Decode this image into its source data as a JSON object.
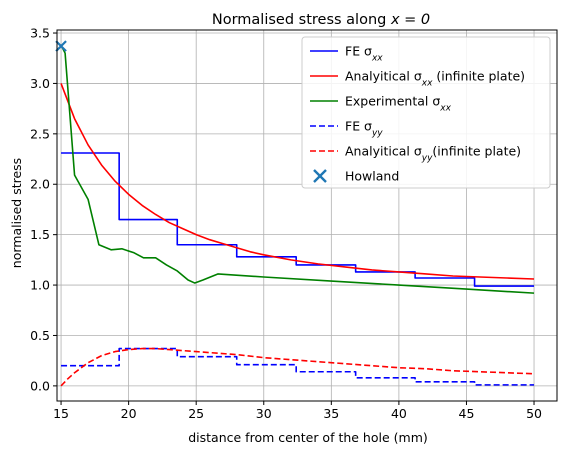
{
  "chart_data": {
    "type": "line",
    "title": "Normalised stress along x = 0",
    "title_parts": {
      "text": "Normalised stress along ",
      "math": "x = 0"
    },
    "xlabel": "distance from center of the hole (mm)",
    "ylabel": "normalised stress",
    "xlim": [
      14.7,
      51.7
    ],
    "ylim": [
      -0.15,
      3.53
    ],
    "xticks": [
      15,
      20,
      25,
      30,
      35,
      40,
      45,
      50
    ],
    "yticks": [
      0.0,
      0.5,
      1.0,
      1.5,
      2.0,
      2.5,
      3.0,
      3.5
    ],
    "xtick_labels": [
      "15",
      "20",
      "25",
      "30",
      "35",
      "40",
      "45",
      "50"
    ],
    "ytick_labels": [
      "0.0",
      "0.5",
      "1.0",
      "1.5",
      "2.0",
      "2.5",
      "3.0",
      "3.5"
    ],
    "grid": true,
    "legend_position": "top-right",
    "series": [
      {
        "name": "FE σxx",
        "name_main": "FE σ",
        "name_sub": "xx",
        "color": "#0000ff",
        "dash": "solid",
        "points": [
          [
            15.0,
            2.31
          ],
          [
            19.3,
            2.31
          ],
          [
            19.3,
            1.65
          ],
          [
            23.6,
            1.65
          ],
          [
            23.6,
            1.4
          ],
          [
            28.0,
            1.4
          ],
          [
            28.0,
            1.28
          ],
          [
            32.4,
            1.28
          ],
          [
            32.4,
            1.2
          ],
          [
            36.8,
            1.2
          ],
          [
            36.8,
            1.13
          ],
          [
            41.2,
            1.13
          ],
          [
            41.2,
            1.07
          ],
          [
            45.6,
            1.07
          ],
          [
            45.6,
            0.99
          ],
          [
            50.0,
            0.99
          ]
        ]
      },
      {
        "name": "Analyitical σxx (infinite plate)",
        "name_main": "Analyitical σ",
        "name_sub": "xx",
        "name_suffix": " (infinite plate)",
        "color": "#ff0000",
        "dash": "solid",
        "points": [
          [
            15.0,
            3.0
          ],
          [
            16.0,
            2.65
          ],
          [
            17.0,
            2.39
          ],
          [
            18.0,
            2.19
          ],
          [
            19.0,
            2.03
          ],
          [
            20.0,
            1.9
          ],
          [
            21.0,
            1.79
          ],
          [
            22.0,
            1.7
          ],
          [
            23.0,
            1.62
          ],
          [
            24.0,
            1.56
          ],
          [
            25.0,
            1.5
          ],
          [
            26.0,
            1.45
          ],
          [
            27.0,
            1.41
          ],
          [
            28.0,
            1.37
          ],
          [
            29.0,
            1.33
          ],
          [
            30.0,
            1.3
          ],
          [
            32.0,
            1.25
          ],
          [
            34.0,
            1.21
          ],
          [
            36.0,
            1.18
          ],
          [
            38.0,
            1.15
          ],
          [
            40.0,
            1.13
          ],
          [
            42.0,
            1.11
          ],
          [
            44.0,
            1.09
          ],
          [
            46.0,
            1.08
          ],
          [
            48.0,
            1.07
          ],
          [
            50.0,
            1.06
          ]
        ]
      },
      {
        "name": "Experimental σxx",
        "name_main": "Experimental σ",
        "name_sub": "xx",
        "color": "#008000",
        "dash": "solid",
        "points": [
          [
            15.0,
            3.38
          ],
          [
            15.3,
            3.3
          ],
          [
            16.0,
            2.09
          ],
          [
            17.0,
            1.85
          ],
          [
            17.8,
            1.4
          ],
          [
            18.7,
            1.35
          ],
          [
            19.5,
            1.36
          ],
          [
            20.4,
            1.32
          ],
          [
            21.1,
            1.27
          ],
          [
            22.0,
            1.27
          ],
          [
            22.8,
            1.2
          ],
          [
            23.6,
            1.14
          ],
          [
            24.4,
            1.05
          ],
          [
            24.9,
            1.02
          ],
          [
            25.5,
            1.05
          ],
          [
            26.6,
            1.11
          ],
          [
            30.0,
            1.08
          ],
          [
            35.0,
            1.04
          ],
          [
            40.0,
            1.0
          ],
          [
            45.0,
            0.96
          ],
          [
            50.0,
            0.92
          ]
        ]
      },
      {
        "name": "FE σyy",
        "name_main": "FE σ",
        "name_sub": "yy",
        "color": "#0000ff",
        "dash": "dashed",
        "points": [
          [
            15.0,
            0.2
          ],
          [
            19.3,
            0.2
          ],
          [
            19.3,
            0.37
          ],
          [
            23.6,
            0.37
          ],
          [
            23.6,
            0.29
          ],
          [
            28.0,
            0.29
          ],
          [
            28.0,
            0.21
          ],
          [
            32.4,
            0.21
          ],
          [
            32.4,
            0.14
          ],
          [
            36.8,
            0.14
          ],
          [
            36.8,
            0.08
          ],
          [
            41.2,
            0.08
          ],
          [
            41.2,
            0.04
          ],
          [
            45.6,
            0.04
          ],
          [
            45.6,
            0.01
          ],
          [
            50.0,
            0.01
          ]
        ]
      },
      {
        "name": "Analyitical σyy(infinite plate)",
        "name_main": "Analyitical σ",
        "name_sub": "yy",
        "name_suffix": "(infinite plate)",
        "color": "#ff0000",
        "dash": "dashed",
        "points": [
          [
            15.0,
            0.0
          ],
          [
            15.5,
            0.07
          ],
          [
            16.0,
            0.13
          ],
          [
            17.0,
            0.23
          ],
          [
            18.0,
            0.3
          ],
          [
            19.0,
            0.34
          ],
          [
            20.0,
            0.36
          ],
          [
            21.0,
            0.37
          ],
          [
            22.0,
            0.37
          ],
          [
            23.0,
            0.36
          ],
          [
            24.0,
            0.35
          ],
          [
            25.0,
            0.34
          ],
          [
            26.0,
            0.33
          ],
          [
            28.0,
            0.31
          ],
          [
            30.0,
            0.28
          ],
          [
            32.0,
            0.26
          ],
          [
            34.0,
            0.24
          ],
          [
            36.0,
            0.22
          ],
          [
            38.0,
            0.2
          ],
          [
            40.0,
            0.18
          ],
          [
            42.0,
            0.17
          ],
          [
            44.0,
            0.15
          ],
          [
            46.0,
            0.14
          ],
          [
            48.0,
            0.13
          ],
          [
            50.0,
            0.12
          ]
        ]
      }
    ],
    "markers": [
      {
        "name": "Howland",
        "x": 15.0,
        "y": 3.37,
        "shape": "x",
        "color": "#1f77b4"
      }
    ]
  }
}
